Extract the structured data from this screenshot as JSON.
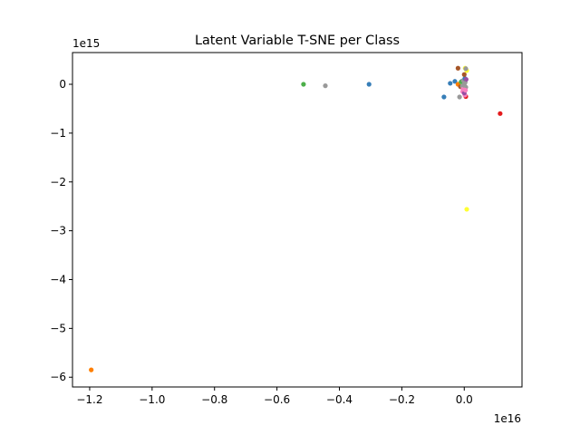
{
  "chart_data": {
    "type": "scatter",
    "title": "Latent Variable T-SNE per Class",
    "xlabel": "",
    "ylabel": "",
    "x_offset_label": "1e16",
    "y_offset_label": "1e15",
    "xlim": [
      -1.255,
      0.185
    ],
    "ylim": [
      -6.2,
      0.65
    ],
    "grid": false,
    "x_ticks": [
      -1.2,
      -1.0,
      -0.8,
      -0.6,
      -0.4,
      -0.2,
      0.0
    ],
    "x_tick_labels": [
      "−1.2",
      "−1.0",
      "−0.8",
      "−0.6",
      "−0.4",
      "−0.2",
      "0.0"
    ],
    "y_ticks": [
      0,
      -1,
      -2,
      -3,
      -4,
      -5,
      -6
    ],
    "y_tick_labels": [
      "0",
      "−1",
      "−2",
      "−3",
      "−4",
      "−5",
      "−6"
    ],
    "points": [
      {
        "x": -1.195,
        "y": -5.85,
        "color": "#ff7f00"
      },
      {
        "x": -0.515,
        "y": 0.0,
        "color": "#4daf4a"
      },
      {
        "x": -0.445,
        "y": -0.03,
        "color": "#999999"
      },
      {
        "x": -0.305,
        "y": 0.0,
        "color": "#377eb8"
      },
      {
        "x": 0.115,
        "y": -0.6,
        "color": "#e41a1c"
      },
      {
        "x": 0.008,
        "y": -2.56,
        "color": "#ffff33"
      },
      {
        "x": -0.065,
        "y": -0.26,
        "color": "#377eb8"
      },
      {
        "x": -0.045,
        "y": 0.02,
        "color": "#377eb8"
      },
      {
        "x": -0.03,
        "y": 0.06,
        "color": "#377eb8"
      },
      {
        "x": -0.02,
        "y": 0.33,
        "color": "#a65628"
      },
      {
        "x": 0.003,
        "y": 0.33,
        "color": "#ffff33"
      },
      {
        "x": 0.008,
        "y": 0.28,
        "color": "#ffff33"
      },
      {
        "x": 0.005,
        "y": 0.32,
        "color": "#999999"
      },
      {
        "x": -0.015,
        "y": -0.26,
        "color": "#999999"
      },
      {
        "x": -0.02,
        "y": 0.0,
        "color": "#ff7f00"
      },
      {
        "x": -0.012,
        "y": -0.05,
        "color": "#a65628"
      },
      {
        "x": -0.008,
        "y": 0.06,
        "color": "#377eb8"
      },
      {
        "x": 0.005,
        "y": -0.25,
        "color": "#e41a1c"
      },
      {
        "x": 0.002,
        "y": -0.22,
        "color": "#f781bf"
      },
      {
        "x": -0.005,
        "y": -0.15,
        "color": "#f781bf"
      },
      {
        "x": 0.0,
        "y": -0.18,
        "color": "#984ea3"
      },
      {
        "x": -0.01,
        "y": 0.05,
        "color": "#4daf4a"
      },
      {
        "x": 0.0,
        "y": 0.0,
        "color": "#999999"
      },
      {
        "x": 0.003,
        "y": 0.04,
        "color": "#999999"
      },
      {
        "x": -0.003,
        "y": 0.08,
        "color": "#999999"
      },
      {
        "x": 0.005,
        "y": -0.06,
        "color": "#999999"
      },
      {
        "x": -0.006,
        "y": -0.04,
        "color": "#999999"
      },
      {
        "x": 0.002,
        "y": 0.12,
        "color": "#377eb8"
      },
      {
        "x": 0.006,
        "y": 0.1,
        "color": "#984ea3"
      },
      {
        "x": -0.004,
        "y": -0.1,
        "color": "#f781bf"
      },
      {
        "x": 0.004,
        "y": -0.12,
        "color": "#f781bf"
      },
      {
        "x": 0.0,
        "y": 0.2,
        "color": "#a65628"
      },
      {
        "x": -0.001,
        "y": -0.02,
        "color": "#999999"
      },
      {
        "x": 0.001,
        "y": 0.02,
        "color": "#999999"
      }
    ]
  }
}
